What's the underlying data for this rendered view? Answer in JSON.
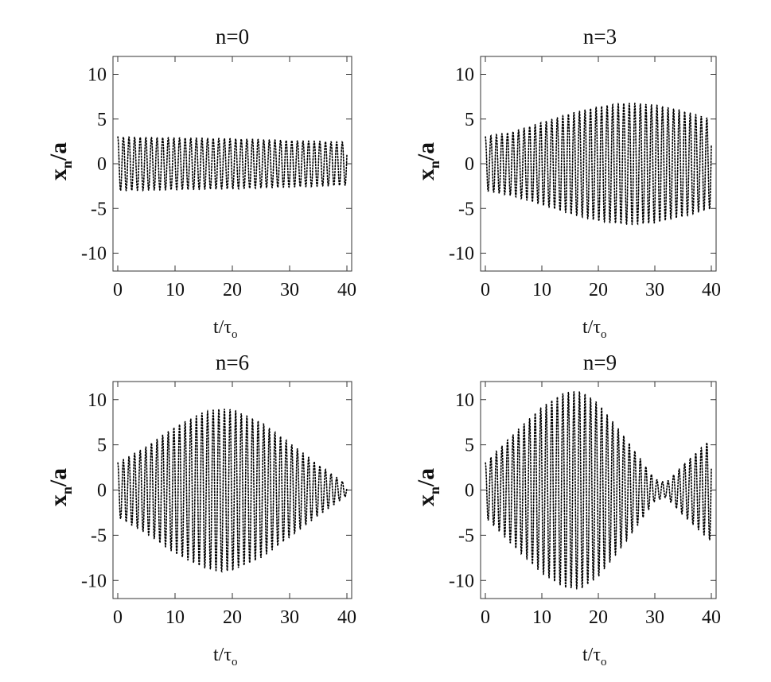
{
  "chart_data": [
    {
      "type": "scatter",
      "title": "n=0",
      "xlabel": "t/τ",
      "xlabel_sub": "o",
      "ylabel": "x",
      "ylabel_sub": "n",
      "ylabel_suffix": "/a",
      "xlim": [
        0,
        40
      ],
      "ylim": [
        -12,
        12
      ],
      "xticks": [
        0,
        10,
        20,
        30,
        40
      ],
      "yticks": [
        -10,
        -5,
        0,
        5,
        10
      ],
      "grid": false,
      "envelope": {
        "t": [
          0,
          10,
          20,
          30,
          40
        ],
        "amplitude": [
          3.0,
          2.9,
          2.8,
          2.6,
          2.4
        ]
      },
      "period": 0.98
    },
    {
      "type": "scatter",
      "title": "n=3",
      "xlabel": "t/τ",
      "xlabel_sub": "o",
      "ylabel": "x",
      "ylabel_sub": "n",
      "ylabel_suffix": "/a",
      "xlim": [
        0,
        40
      ],
      "ylim": [
        -12,
        12
      ],
      "xticks": [
        0,
        10,
        20,
        30,
        40
      ],
      "yticks": [
        -10,
        -5,
        0,
        5,
        10
      ],
      "grid": false,
      "envelope": {
        "t": [
          0,
          5,
          10,
          15,
          20,
          25,
          30,
          35,
          40
        ],
        "amplitude": [
          3.0,
          3.6,
          4.6,
          5.6,
          6.4,
          6.8,
          6.6,
          5.9,
          5.0
        ]
      },
      "period": 0.98
    },
    {
      "type": "scatter",
      "title": "n=6",
      "xlabel": "t/τ",
      "xlabel_sub": "o",
      "ylabel": "x",
      "ylabel_sub": "n",
      "ylabel_suffix": "/a",
      "xlim": [
        0,
        40
      ],
      "ylim": [
        -12,
        12
      ],
      "xticks": [
        0,
        10,
        20,
        30,
        40
      ],
      "yticks": [
        -10,
        -5,
        0,
        5,
        10
      ],
      "grid": false,
      "envelope": {
        "t": [
          0,
          5,
          10,
          15,
          18,
          20,
          25,
          30,
          35,
          40
        ],
        "amplitude": [
          3.0,
          4.8,
          7.0,
          8.6,
          9.0,
          8.9,
          7.5,
          5.2,
          2.8,
          0.6
        ]
      },
      "period": 0.98
    },
    {
      "type": "scatter",
      "title": "n=9",
      "xlabel": "t/τ",
      "xlabel_sub": "o",
      "ylabel": "x",
      "ylabel_sub": "n",
      "ylabel_suffix": "/a",
      "xlim": [
        0,
        40
      ],
      "ylim": [
        -12,
        12
      ],
      "xticks": [
        0,
        10,
        20,
        30,
        40
      ],
      "yticks": [
        -10,
        -5,
        0,
        5,
        10
      ],
      "grid": false,
      "envelope": {
        "t": [
          0,
          5,
          10,
          14,
          17,
          20,
          25,
          30,
          32,
          35,
          40
        ],
        "amplitude": [
          3.0,
          6.2,
          9.2,
          10.8,
          10.9,
          9.6,
          5.6,
          1.2,
          0.8,
          2.8,
          5.7
        ]
      },
      "period": 0.98
    }
  ]
}
